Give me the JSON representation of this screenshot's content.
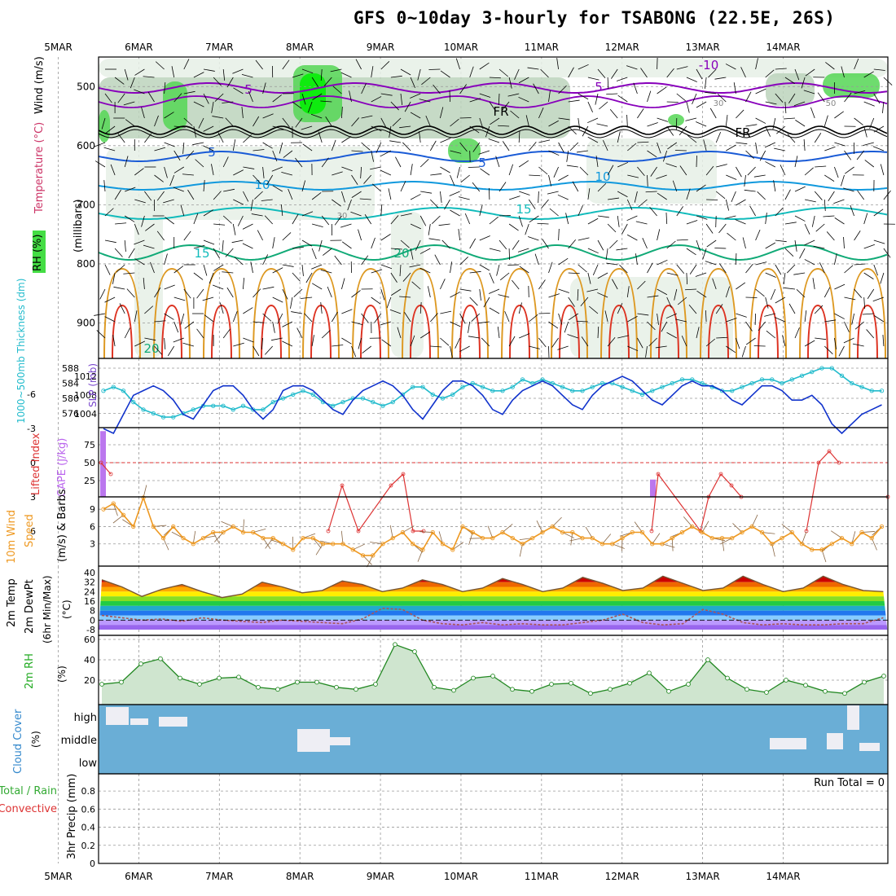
{
  "title": "GFS 0~10day 3-hourly for TSABONG (22.5E, 26S)",
  "date_labels": [
    "5MAR",
    "6MAR",
    "7MAR",
    "8MAR",
    "9MAR",
    "10MAR",
    "11MAR",
    "12MAR",
    "13MAR",
    "14MAR"
  ],
  "colors": {
    "frame": "#000000",
    "grid": "#999999",
    "wind_barb": "#000000",
    "rh_shade_light": "#e6f0e6",
    "rh_shade_mid": "#bcd4bc",
    "rh_shade_dark": "#55d655",
    "rh_shade_max": "#00ee00",
    "temp_cold": "#8800bb",
    "temp_5": "#1a5bd6",
    "temp_10": "#1199dd",
    "temp_15": "#11bbbb",
    "temp_20": "#11aa77",
    "temp_warm": "#dd9922",
    "temp_hot": "#dd3322",
    "thickness": "#22bbcc",
    "slp": "#1133cc",
    "cape": "#bb77ee",
    "lifted_index": "#dd3333",
    "wind10m": "#ee9922",
    "dewpt_line": "#aa5555",
    "rh2m_line": "#228822",
    "rh2m_fill": "#cfe5cf",
    "cloud_fill": "#6aaed6",
    "cloud_clear": "#eeeef4",
    "precip_total": "#33aa33",
    "precip_conv": "#dd3333"
  },
  "panels": {
    "upper": {
      "ylabel_wind": "Wind (m/s)",
      "ylabel_temp": "Temperature (°C)",
      "ylabel_mb": "(millibars)",
      "rh_legend": "RH (%)",
      "y_ticks": [
        "500",
        "600",
        "700",
        "800",
        "900"
      ],
      "contour_labels": [
        "-10",
        "5",
        "5",
        "FR",
        "FR",
        "5",
        "5",
        "10",
        "10",
        "15",
        "15",
        "20",
        "20",
        "30",
        "30",
        "50"
      ]
    },
    "slp": {
      "ylabel_thick": "1000~500mb Thickness (dm)",
      "ylabel_slp": "SLP (mb)",
      "left_ticks": [
        "588",
        "584",
        "580",
        "576"
      ],
      "right_ticks": [
        "1012",
        "1008",
        "1004"
      ]
    },
    "cape": {
      "ylabel_li": "Lifted Index",
      "ylabel_cape": "CAPE (J/kg)",
      "li_ticks": [
        "-6",
        "-3",
        "0",
        "3",
        "6"
      ],
      "cape_ticks": [
        "75",
        "50",
        "25"
      ]
    },
    "wind10m": {
      "ylabel_a": "10m Wind",
      "ylabel_b": "Speed",
      "ylabel_c": "(m/s) & Barbs",
      "y_ticks": [
        "9",
        "6",
        "3"
      ]
    },
    "temp2m": {
      "ylabel_a": "2m Temp",
      "ylabel_b": "2m DewPt",
      "ylabel_c": "(6hr Min/Max)",
      "unit": "(°C)",
      "y_ticks": [
        "40",
        "32",
        "24",
        "16",
        "8",
        "0",
        "-8"
      ]
    },
    "rh2m": {
      "ylabel": "2m RH",
      "unit": "(%)",
      "y_ticks": [
        "60",
        "40",
        "20"
      ]
    },
    "cloud": {
      "ylabel": "Cloud Cover",
      "unit": "(%)",
      "levels": [
        "high",
        "middle",
        "low"
      ]
    },
    "precip": {
      "ylabel_total": "Total / Rain",
      "ylabel_conv": "Convective",
      "ylabel": "3hr Precip (mm)",
      "run_total": "Run Total = 0",
      "y_ticks": [
        "0.8",
        "0.6",
        "0.4",
        "0.2",
        "0"
      ]
    }
  },
  "chart_data": [
    {
      "type": "line",
      "name": "SLP",
      "x": [
        "4MAR12",
        "4MAR15",
        "4MAR18",
        "4MAR21",
        "5MAR00",
        "5MAR03",
        "5MAR06",
        "5MAR09",
        "5MAR12",
        "5MAR15",
        "5MAR18",
        "5MAR21",
        "6MAR00",
        "6MAR03",
        "6MAR06",
        "6MAR09",
        "6MAR12",
        "6MAR15",
        "6MAR18",
        "6MAR21",
        "7MAR00",
        "7MAR03",
        "7MAR06",
        "7MAR09",
        "7MAR12",
        "7MAR15",
        "7MAR18",
        "7MAR21",
        "8MAR00",
        "8MAR03",
        "8MAR06",
        "8MAR09",
        "8MAR12",
        "8MAR15",
        "8MAR18",
        "8MAR21",
        "9MAR00",
        "9MAR03",
        "9MAR06",
        "9MAR09",
        "9MAR12",
        "9MAR15",
        "9MAR18",
        "9MAR21",
        "10MAR00",
        "10MAR03",
        "10MAR06",
        "10MAR09",
        "10MAR12",
        "10MAR15",
        "10MAR18",
        "10MAR21",
        "11MAR00",
        "11MAR03",
        "11MAR06",
        "11MAR09",
        "11MAR12",
        "11MAR15",
        "11MAR18",
        "11MAR21",
        "12MAR00",
        "12MAR03",
        "12MAR06",
        "12MAR09",
        "12MAR12",
        "12MAR15",
        "12MAR18",
        "12MAR21",
        "13MAR00",
        "13MAR03",
        "13MAR06",
        "13MAR09",
        "13MAR12",
        "13MAR15",
        "13MAR18",
        "13MAR21",
        "14MAR00",
        "14MAR03",
        "14MAR06"
      ],
      "values": [
        1003,
        1002,
        1006,
        1010,
        1011,
        1012,
        1011,
        1009,
        1006,
        1005,
        1008,
        1011,
        1012,
        1012,
        1010,
        1007,
        1005,
        1007,
        1011,
        1012,
        1012,
        1011,
        1009,
        1007,
        1006,
        1009,
        1011,
        1012,
        1013,
        1012,
        1010,
        1007,
        1005,
        1008,
        1011,
        1013,
        1013,
        1012,
        1010,
        1007,
        1006,
        1009,
        1011,
        1012,
        1013,
        1012,
        1010,
        1008,
        1007,
        1010,
        1012,
        1013,
        1014,
        1013,
        1011,
        1009,
        1008,
        1010,
        1012,
        1013,
        1012,
        1012,
        1011,
        1009,
        1008,
        1010,
        1012,
        1012,
        1011,
        1009,
        1009,
        1010,
        1008,
        1004,
        1002,
        1004,
        1006,
        1007,
        1008
      ]
    },
    {
      "type": "line",
      "name": "1000~500mb Thickness",
      "x": [
        "4MAR12",
        "4MAR15",
        "4MAR18",
        "4MAR21",
        "5MAR00",
        "5MAR03",
        "5MAR06",
        "5MAR09",
        "5MAR12",
        "5MAR15",
        "5MAR18",
        "5MAR21",
        "6MAR00",
        "6MAR03",
        "6MAR06",
        "6MAR09",
        "6MAR12",
        "6MAR15",
        "6MAR18",
        "6MAR21",
        "7MAR00",
        "7MAR03",
        "7MAR06",
        "7MAR09",
        "7MAR12",
        "7MAR15",
        "7MAR18",
        "7MAR21",
        "8MAR00",
        "8MAR03",
        "8MAR06",
        "8MAR09",
        "8MAR12",
        "8MAR15",
        "8MAR18",
        "8MAR21",
        "9MAR00",
        "9MAR03",
        "9MAR06",
        "9MAR09",
        "9MAR12",
        "9MAR15",
        "9MAR18",
        "9MAR21",
        "10MAR00",
        "10MAR03",
        "10MAR06",
        "10MAR09",
        "10MAR12",
        "10MAR15",
        "10MAR18",
        "10MAR21",
        "11MAR00",
        "11MAR03",
        "11MAR06",
        "11MAR09",
        "11MAR12",
        "11MAR15",
        "11MAR18",
        "11MAR21",
        "12MAR00",
        "12MAR03",
        "12MAR06",
        "12MAR09",
        "12MAR12",
        "12MAR15",
        "12MAR18",
        "12MAR21",
        "13MAR00",
        "13MAR03",
        "13MAR06",
        "13MAR09",
        "13MAR12",
        "13MAR15",
        "13MAR18",
        "13MAR21",
        "14MAR00",
        "14MAR03",
        "14MAR06"
      ],
      "values": [
        582,
        583,
        582,
        579,
        577,
        576,
        575,
        575,
        576,
        577,
        578,
        578,
        578,
        577,
        578,
        577,
        577,
        579,
        580,
        581,
        582,
        581,
        579,
        578,
        579,
        580,
        580,
        579,
        578,
        579,
        581,
        583,
        583,
        581,
        580,
        581,
        583,
        584,
        583,
        582,
        582,
        583,
        585,
        584,
        585,
        584,
        583,
        582,
        582,
        583,
        584,
        584,
        583,
        582,
        581,
        582,
        583,
        584,
        585,
        585,
        584,
        583,
        582,
        582,
        583,
        584,
        585,
        585,
        584,
        585,
        586,
        587,
        588,
        588,
        586,
        584,
        583,
        582,
        582
      ]
    },
    {
      "type": "line",
      "name": "Lifted Index",
      "x": [
        "4MAR12",
        "4MAR15",
        "7MAR12",
        "7MAR15",
        "7MAR18",
        "8MAR03",
        "8MAR06",
        "8MAR09",
        "8MAR12",
        "11MAR06",
        "11MAR09",
        "12MAR00",
        "12MAR03",
        "12MAR06",
        "12MAR09",
        "12MAR12",
        "13MAR00",
        "13MAR03",
        "13MAR06",
        "13MAR09",
        "14MAR06"
      ],
      "values": [
        0,
        1,
        6,
        2,
        6,
        2,
        1,
        6,
        6,
        6,
        1,
        6,
        3,
        1,
        2,
        3,
        6,
        0,
        -1,
        0,
        3
      ]
    },
    {
      "type": "bar",
      "name": "CAPE",
      "categories": [
        "4MAR12",
        "11MAR12"
      ],
      "values": [
        95,
        25
      ]
    },
    {
      "type": "line",
      "name": "10m Wind Speed",
      "x": [
        "4MAR12",
        "4MAR15",
        "4MAR18",
        "4MAR21",
        "5MAR00",
        "5MAR03",
        "5MAR06",
        "5MAR09",
        "5MAR12",
        "5MAR15",
        "5MAR18",
        "5MAR21",
        "6MAR00",
        "6MAR03",
        "6MAR06",
        "6MAR09",
        "6MAR12",
        "6MAR15",
        "6MAR18",
        "6MAR21",
        "7MAR00",
        "7MAR03",
        "7MAR06",
        "7MAR09",
        "7MAR12",
        "7MAR15",
        "7MAR18",
        "7MAR21",
        "8MAR00",
        "8MAR03",
        "8MAR06",
        "8MAR09",
        "8MAR12",
        "8MAR15",
        "8MAR18",
        "8MAR21",
        "9MAR00",
        "9MAR03",
        "9MAR06",
        "9MAR09",
        "9MAR12",
        "9MAR15",
        "9MAR18",
        "9MAR21",
        "10MAR00",
        "10MAR03",
        "10MAR06",
        "10MAR09",
        "10MAR12",
        "10MAR15",
        "10MAR18",
        "10MAR21",
        "11MAR00",
        "11MAR03",
        "11MAR06",
        "11MAR09",
        "11MAR12",
        "11MAR15",
        "11MAR18",
        "11MAR21",
        "12MAR00",
        "12MAR03",
        "12MAR06",
        "12MAR09",
        "12MAR12",
        "12MAR15",
        "12MAR18",
        "12MAR21",
        "13MAR00",
        "13MAR03",
        "13MAR06",
        "13MAR09",
        "13MAR12",
        "13MAR15",
        "13MAR18",
        "13MAR21",
        "14MAR00",
        "14MAR03",
        "14MAR06"
      ],
      "values": [
        9,
        10,
        8,
        6,
        11,
        6,
        4,
        6,
        4,
        3,
        4,
        5,
        5,
        6,
        5,
        5,
        4,
        4,
        3,
        2,
        4,
        4,
        3,
        3,
        3,
        2,
        1,
        1,
        3,
        4,
        5,
        3,
        2,
        5,
        3,
        2,
        6,
        5,
        4,
        4,
        5,
        4,
        3,
        4,
        5,
        6,
        5,
        5,
        4,
        4,
        3,
        3,
        4,
        5,
        5,
        3,
        3,
        4,
        5,
        6,
        5,
        4,
        4,
        4,
        5,
        6,
        5,
        3,
        4,
        5,
        3,
        2,
        2,
        3,
        4,
        3,
        5,
        4,
        6
      ]
    },
    {
      "type": "area",
      "name": "2m Temp",
      "x": [
        "4MAR12",
        "4MAR18",
        "5MAR00",
        "5MAR06",
        "5MAR12",
        "5MAR18",
        "6MAR00",
        "6MAR06",
        "6MAR12",
        "6MAR18",
        "7MAR00",
        "7MAR06",
        "7MAR12",
        "7MAR18",
        "8MAR00",
        "8MAR06",
        "8MAR12",
        "8MAR18",
        "9MAR00",
        "9MAR06",
        "9MAR12",
        "9MAR18",
        "10MAR00",
        "10MAR06",
        "10MAR12",
        "10MAR18",
        "11MAR00",
        "11MAR06",
        "11MAR12",
        "11MAR18",
        "12MAR00",
        "12MAR06",
        "12MAR12",
        "12MAR18",
        "13MAR00",
        "13MAR06",
        "13MAR12",
        "13MAR18",
        "14MAR00",
        "14MAR06"
      ],
      "values": [
        34,
        28,
        20,
        26,
        30,
        24,
        19,
        22,
        32,
        28,
        23,
        25,
        33,
        30,
        24,
        27,
        34,
        30,
        24,
        27,
        35,
        30,
        24,
        27,
        36,
        31,
        25,
        27,
        37,
        31,
        25,
        27,
        37,
        30,
        24,
        27,
        37,
        30,
        25,
        24
      ]
    },
    {
      "type": "line",
      "name": "2m DewPt",
      "x": [
        "4MAR12",
        "4MAR18",
        "5MAR00",
        "5MAR06",
        "5MAR12",
        "5MAR18",
        "6MAR00",
        "6MAR06",
        "6MAR12",
        "6MAR18",
        "7MAR00",
        "7MAR06",
        "7MAR12",
        "7MAR18",
        "8MAR00",
        "8MAR06",
        "8MAR12",
        "8MAR18",
        "9MAR00",
        "9MAR06",
        "9MAR12",
        "9MAR18",
        "10MAR00",
        "10MAR06",
        "10MAR12",
        "10MAR18",
        "11MAR00",
        "11MAR06",
        "11MAR12",
        "11MAR18",
        "12MAR00",
        "12MAR06",
        "12MAR12",
        "12MAR18",
        "13MAR00",
        "13MAR06",
        "13MAR12",
        "13MAR18",
        "14MAR00",
        "14MAR06"
      ],
      "values": [
        4,
        2,
        0,
        1,
        -1,
        2,
        0,
        -1,
        -2,
        0,
        -1,
        -2,
        -3,
        1,
        10,
        9,
        0,
        -3,
        -4,
        -2,
        -4,
        -3,
        -4,
        -4,
        -2,
        0,
        5,
        -2,
        -4,
        -3,
        9,
        5,
        -2,
        -4,
        -3,
        -4,
        -4,
        -3,
        -3,
        2
      ]
    },
    {
      "type": "area",
      "name": "2m RH",
      "x": [
        "4MAR12",
        "4MAR18",
        "5MAR00",
        "5MAR06",
        "5MAR12",
        "5MAR18",
        "6MAR00",
        "6MAR06",
        "6MAR12",
        "6MAR18",
        "7MAR00",
        "7MAR06",
        "7MAR12",
        "7MAR18",
        "8MAR00",
        "8MAR03",
        "8MAR06",
        "8MAR12",
        "8MAR18",
        "9MAR00",
        "9MAR06",
        "9MAR12",
        "9MAR18",
        "10MAR00",
        "10MAR06",
        "10MAR12",
        "10MAR18",
        "11MAR00",
        "11MAR06",
        "11MAR12",
        "11MAR18",
        "12MAR00",
        "12MAR06",
        "12MAR12",
        "12MAR18",
        "13MAR00",
        "13MAR06",
        "13MAR12",
        "13MAR18",
        "14MAR00",
        "14MAR06"
      ],
      "values": [
        16,
        18,
        36,
        41,
        22,
        16,
        22,
        23,
        13,
        11,
        18,
        18,
        13,
        11,
        16,
        55,
        48,
        13,
        10,
        22,
        24,
        11,
        9,
        16,
        17,
        7,
        11,
        17,
        27,
        9,
        16,
        40,
        22,
        11,
        8,
        20,
        15,
        9,
        7,
        18,
        24
      ]
    },
    {
      "type": "bar",
      "name": "3hr Precip",
      "categories": [
        "5MAR",
        "6MAR",
        "7MAR",
        "8MAR",
        "9MAR",
        "10MAR",
        "11MAR",
        "12MAR",
        "13MAR",
        "14MAR"
      ],
      "values": [
        0,
        0,
        0,
        0,
        0,
        0,
        0,
        0,
        0,
        0
      ],
      "ylim": [
        0,
        0.9
      ]
    }
  ]
}
